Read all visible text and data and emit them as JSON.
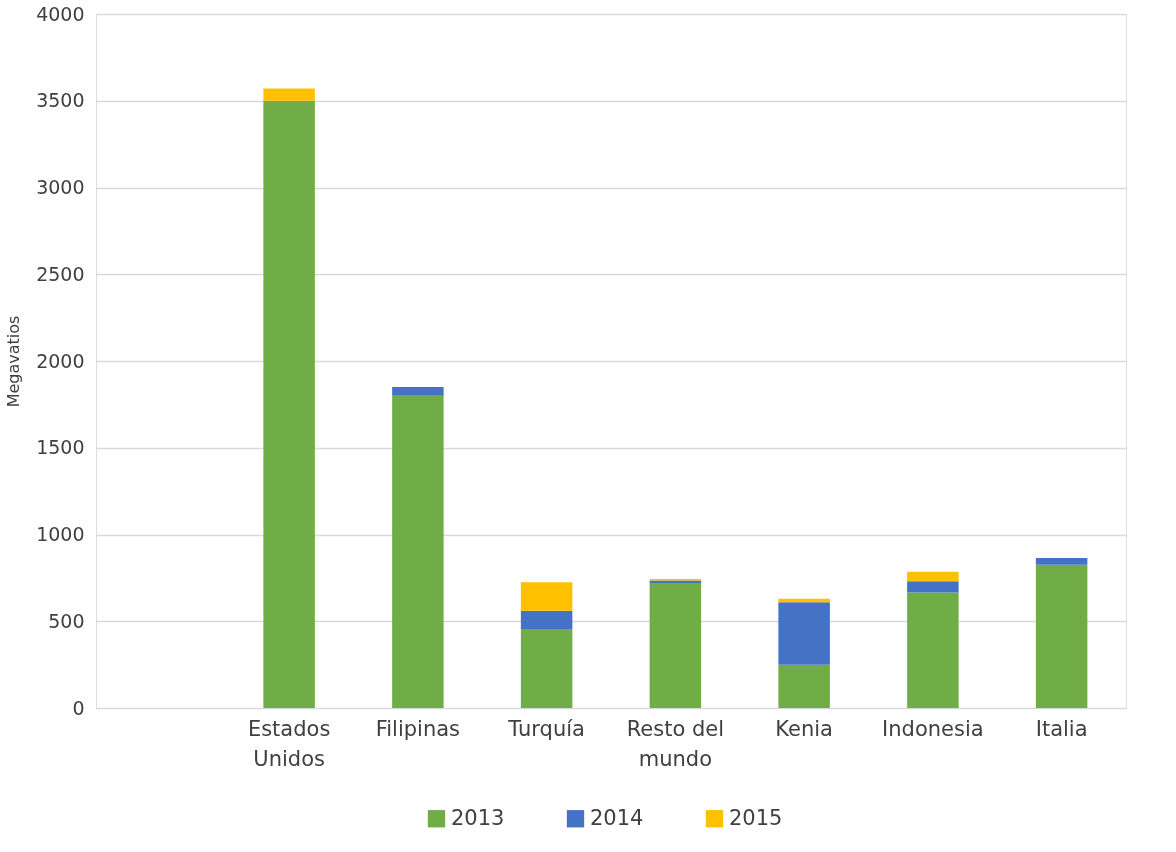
{
  "chart_data": {
    "type": "bar",
    "stacked": true,
    "ylabel": "Megavatios",
    "categories": [
      null,
      "Estados Unidos",
      "Filipinas",
      "Turquía",
      "Resto del mundo",
      "Kenia",
      "Indonesia",
      "Italia"
    ],
    "series": [
      {
        "name": "2013",
        "color": "#70ad47",
        "values": [
          null,
          3500,
          1800,
          455,
          720,
          250,
          665,
          825
        ]
      },
      {
        "name": "2014",
        "color": "#4472c4",
        "values": [
          null,
          null,
          50,
          105,
          15,
          360,
          65,
          40
        ]
      },
      {
        "name": "2015",
        "color": "#ffc000",
        "values": [
          null,
          70,
          null,
          165,
          8,
          20,
          55,
          null
        ]
      }
    ],
    "ylim": [
      0,
      4000
    ],
    "yticks": [
      0,
      500,
      1000,
      1500,
      2000,
      2500,
      3000,
      3500,
      4000
    ],
    "grid": "y",
    "legend": "bottom"
  }
}
